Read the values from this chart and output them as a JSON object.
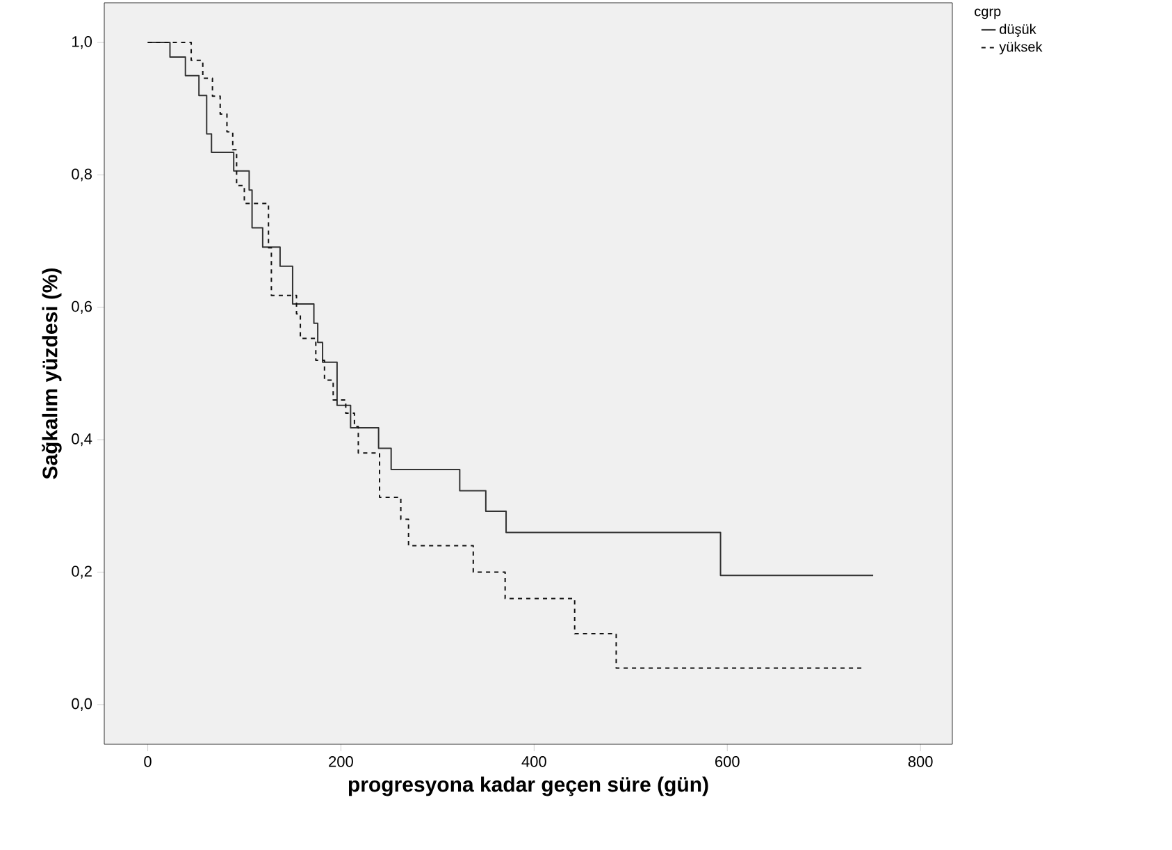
{
  "chart_data": {
    "type": "step",
    "xlabel": "progresyona kadar geçen süre (gün)",
    "ylabel": "Sağkalım yüzdesi (%)",
    "legend_title": "cgrp",
    "legend": "top right",
    "grid": false,
    "xlim": [
      -45,
      833
    ],
    "ylim": [
      -0.06,
      1.06
    ],
    "xticks": [
      0,
      200,
      400,
      600,
      800
    ],
    "yticks": [
      {
        "value": 0,
        "label": "0,0"
      },
      {
        "value": 0.2,
        "label": "0,2"
      },
      {
        "value": 0.4,
        "label": "0,4"
      },
      {
        "value": 0.6,
        "label": "0,6"
      },
      {
        "value": 0.8,
        "label": "0,8"
      },
      {
        "value": 1,
        "label": "1,0"
      }
    ],
    "series": [
      {
        "name": "düşük",
        "color": "#333333",
        "line_style": "solid",
        "x": [
          0,
          23,
          39,
          53,
          61,
          66,
          89,
          105,
          108,
          119,
          137,
          150,
          172,
          176,
          181,
          196,
          210,
          239,
          252,
          323,
          350,
          371,
          593,
          751
        ],
        "values": [
          1,
          0.978,
          0.95,
          0.92,
          0.862,
          0.834,
          0.806,
          0.777,
          0.72,
          0.691,
          0.662,
          0.605,
          0.576,
          0.547,
          0.517,
          0.452,
          0.418,
          0.387,
          0.355,
          0.323,
          0.292,
          0.26,
          0.195,
          0.195
        ]
      },
      {
        "name": "yüksek",
        "color": "#111111",
        "line_style": "dashed",
        "x": [
          0,
          45,
          57,
          67,
          75,
          82,
          88,
          92,
          100,
          125,
          128,
          154,
          158,
          174,
          183,
          192,
          205,
          214,
          218,
          240,
          262,
          270,
          337,
          370,
          442,
          485,
          740
        ],
        "values": [
          1,
          0.973,
          0.946,
          0.919,
          0.892,
          0.865,
          0.838,
          0.784,
          0.757,
          0.69,
          0.618,
          0.59,
          0.553,
          0.52,
          0.49,
          0.46,
          0.44,
          0.42,
          0.38,
          0.313,
          0.28,
          0.24,
          0.2,
          0.16,
          0.107,
          0.055,
          0.055
        ]
      }
    ]
  }
}
